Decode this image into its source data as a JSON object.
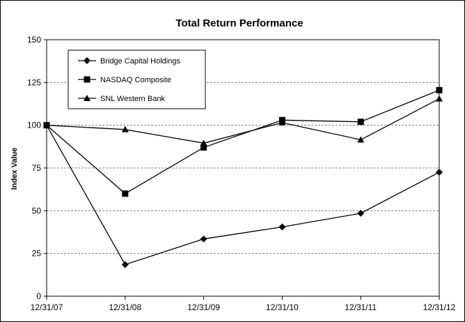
{
  "chart_data": {
    "type": "line",
    "title": "Total Return Performance",
    "xlabel": "",
    "ylabel": "Index Value",
    "categories": [
      "12/31/07",
      "12/31/08",
      "12/31/09",
      "12/31/10",
      "12/31/11",
      "12/31/12"
    ],
    "ylim": [
      0,
      150
    ],
    "yticks": [
      0,
      25,
      50,
      75,
      100,
      125,
      150
    ],
    "grid": "horizontal dashed",
    "legend_position": "top-left",
    "series": [
      {
        "name": "Bridge Capital Holdings",
        "marker": "diamond",
        "values": [
          100,
          18.5,
          33.5,
          40.5,
          48.5,
          72.5
        ]
      },
      {
        "name": "NASDAQ Composite",
        "marker": "square",
        "values": [
          100,
          60,
          87,
          103,
          102,
          120.5
        ]
      },
      {
        "name": "SNL Western Bank",
        "marker": "triangle",
        "values": [
          100,
          97.5,
          89.5,
          101.5,
          91.5,
          115.5
        ]
      }
    ],
    "colors": {
      "line": "#000000",
      "grid": "#808080",
      "background": "#ffffff"
    }
  }
}
